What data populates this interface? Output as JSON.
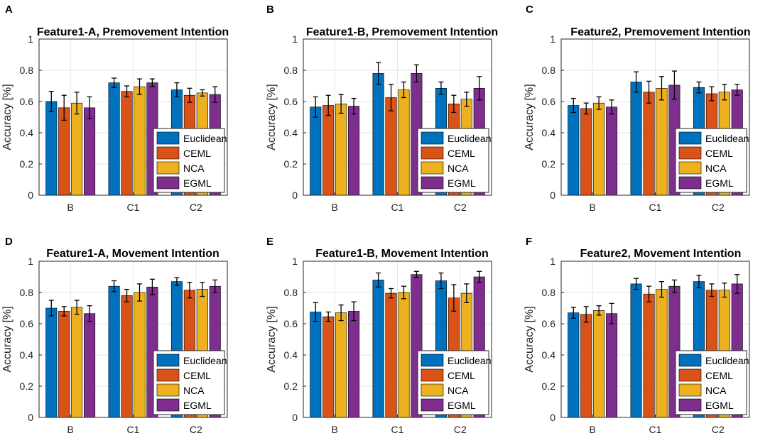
{
  "colors": {
    "Euclidean": "#0072BD",
    "CEML": "#D95319",
    "NCA": "#EDB120",
    "EGML": "#7E2F8E",
    "grid": "#e6e6e6",
    "axis": "#262626"
  },
  "chart_data": [
    {
      "panel": "A",
      "type": "bar",
      "title": "Feature1-A, Premovement Intention",
      "ylabel": "Accuracy [%]",
      "xlabel": "",
      "ylim": [
        0,
        1
      ],
      "yticks": [
        "0",
        "0.2",
        "0.4",
        "0.6",
        "0.8",
        "1"
      ],
      "grid": true,
      "legend_position": "bottom-right",
      "categories": [
        "B",
        "C1",
        "C2"
      ],
      "series": [
        {
          "name": "Euclidean",
          "values": [
            0.6,
            0.72,
            0.675
          ],
          "errors": [
            0.065,
            0.03,
            0.045
          ]
        },
        {
          "name": "CEML",
          "values": [
            0.56,
            0.665,
            0.64
          ],
          "errors": [
            0.08,
            0.035,
            0.045
          ]
        },
        {
          "name": "NCA",
          "values": [
            0.59,
            0.695,
            0.655
          ],
          "errors": [
            0.07,
            0.05,
            0.02
          ]
        },
        {
          "name": "EGML",
          "values": [
            0.56,
            0.72,
            0.645
          ],
          "errors": [
            0.07,
            0.025,
            0.05
          ]
        }
      ]
    },
    {
      "panel": "B",
      "type": "bar",
      "title": "Feature1-B, Premovement Intention",
      "ylabel": "Accuracy [%]",
      "xlabel": "",
      "ylim": [
        0,
        1
      ],
      "yticks": [
        "0",
        "0.2",
        "0.4",
        "0.6",
        "0.8",
        "1"
      ],
      "grid": true,
      "legend_position": "bottom-right",
      "categories": [
        "B",
        "C1",
        "C2"
      ],
      "series": [
        {
          "name": "Euclidean",
          "values": [
            0.565,
            0.78,
            0.685
          ],
          "errors": [
            0.065,
            0.07,
            0.04
          ]
        },
        {
          "name": "CEML",
          "values": [
            0.575,
            0.625,
            0.585
          ],
          "errors": [
            0.065,
            0.085,
            0.055
          ]
        },
        {
          "name": "NCA",
          "values": [
            0.585,
            0.675,
            0.615
          ],
          "errors": [
            0.06,
            0.05,
            0.045
          ]
        },
        {
          "name": "EGML",
          "values": [
            0.57,
            0.78,
            0.685
          ],
          "errors": [
            0.05,
            0.055,
            0.075
          ]
        }
      ]
    },
    {
      "panel": "C",
      "type": "bar",
      "title": "Feature2, Premovement Intention",
      "ylabel": "Accuracy [%]",
      "xlabel": "",
      "ylim": [
        0,
        1
      ],
      "yticks": [
        "0",
        "0.2",
        "0.4",
        "0.6",
        "0.8",
        "1"
      ],
      "grid": true,
      "legend_position": "bottom-right",
      "categories": [
        "B",
        "C1",
        "C2"
      ],
      "series": [
        {
          "name": "Euclidean",
          "values": [
            0.575,
            0.725,
            0.69
          ],
          "errors": [
            0.045,
            0.065,
            0.035
          ]
        },
        {
          "name": "CEML",
          "values": [
            0.555,
            0.66,
            0.65
          ],
          "errors": [
            0.035,
            0.07,
            0.045
          ]
        },
        {
          "name": "NCA",
          "values": [
            0.59,
            0.685,
            0.66
          ],
          "errors": [
            0.04,
            0.075,
            0.05
          ]
        },
        {
          "name": "EGML",
          "values": [
            0.565,
            0.705,
            0.675
          ],
          "errors": [
            0.045,
            0.09,
            0.035
          ]
        }
      ]
    },
    {
      "panel": "D",
      "type": "bar",
      "title": "Feature1-A, Movement Intention",
      "ylabel": "Accuracy [%]",
      "xlabel": "",
      "ylim": [
        0,
        1
      ],
      "yticks": [
        "0",
        "0.2",
        "0.4",
        "0.6",
        "0.8",
        "1"
      ],
      "grid": true,
      "legend_position": "bottom-right",
      "categories": [
        "B",
        "C1",
        "C2"
      ],
      "series": [
        {
          "name": "Euclidean",
          "values": [
            0.7,
            0.84,
            0.87
          ],
          "errors": [
            0.05,
            0.035,
            0.025
          ]
        },
        {
          "name": "CEML",
          "values": [
            0.68,
            0.78,
            0.815
          ],
          "errors": [
            0.03,
            0.04,
            0.05
          ]
        },
        {
          "name": "NCA",
          "values": [
            0.705,
            0.8,
            0.82
          ],
          "errors": [
            0.045,
            0.055,
            0.045
          ]
        },
        {
          "name": "EGML",
          "values": [
            0.665,
            0.835,
            0.84
          ],
          "errors": [
            0.05,
            0.05,
            0.04
          ]
        }
      ]
    },
    {
      "panel": "E",
      "type": "bar",
      "title": "Feature1-B, Movement Intention",
      "ylabel": "Accuracy [%]",
      "xlabel": "",
      "ylim": [
        0,
        1
      ],
      "yticks": [
        "0",
        "0.2",
        "0.4",
        "0.6",
        "0.8",
        "1"
      ],
      "grid": true,
      "legend_position": "bottom-right",
      "categories": [
        "B",
        "C1",
        "C2"
      ],
      "series": [
        {
          "name": "Euclidean",
          "values": [
            0.675,
            0.88,
            0.875
          ],
          "errors": [
            0.06,
            0.045,
            0.05
          ]
        },
        {
          "name": "CEML",
          "values": [
            0.645,
            0.795,
            0.765
          ],
          "errors": [
            0.03,
            0.03,
            0.085
          ]
        },
        {
          "name": "NCA",
          "values": [
            0.67,
            0.8,
            0.795
          ],
          "errors": [
            0.05,
            0.04,
            0.06
          ]
        },
        {
          "name": "EGML",
          "values": [
            0.68,
            0.915,
            0.9
          ],
          "errors": [
            0.06,
            0.02,
            0.035
          ]
        }
      ]
    },
    {
      "panel": "F",
      "type": "bar",
      "title": "Feature2, Movement Intention",
      "ylabel": "Accuracy [%]",
      "xlabel": "",
      "ylim": [
        0,
        1
      ],
      "yticks": [
        "0",
        "0.2",
        "0.4",
        "0.6",
        "0.8",
        "1"
      ],
      "grid": true,
      "legend_position": "bottom-right",
      "categories": [
        "B",
        "C1",
        "C2"
      ],
      "series": [
        {
          "name": "Euclidean",
          "values": [
            0.67,
            0.855,
            0.87
          ],
          "errors": [
            0.035,
            0.035,
            0.04
          ]
        },
        {
          "name": "CEML",
          "values": [
            0.66,
            0.79,
            0.815
          ],
          "errors": [
            0.05,
            0.05,
            0.04
          ]
        },
        {
          "name": "NCA",
          "values": [
            0.685,
            0.82,
            0.815
          ],
          "errors": [
            0.03,
            0.05,
            0.045
          ]
        },
        {
          "name": "EGML",
          "values": [
            0.665,
            0.84,
            0.855
          ],
          "errors": [
            0.065,
            0.04,
            0.06
          ]
        }
      ]
    }
  ]
}
